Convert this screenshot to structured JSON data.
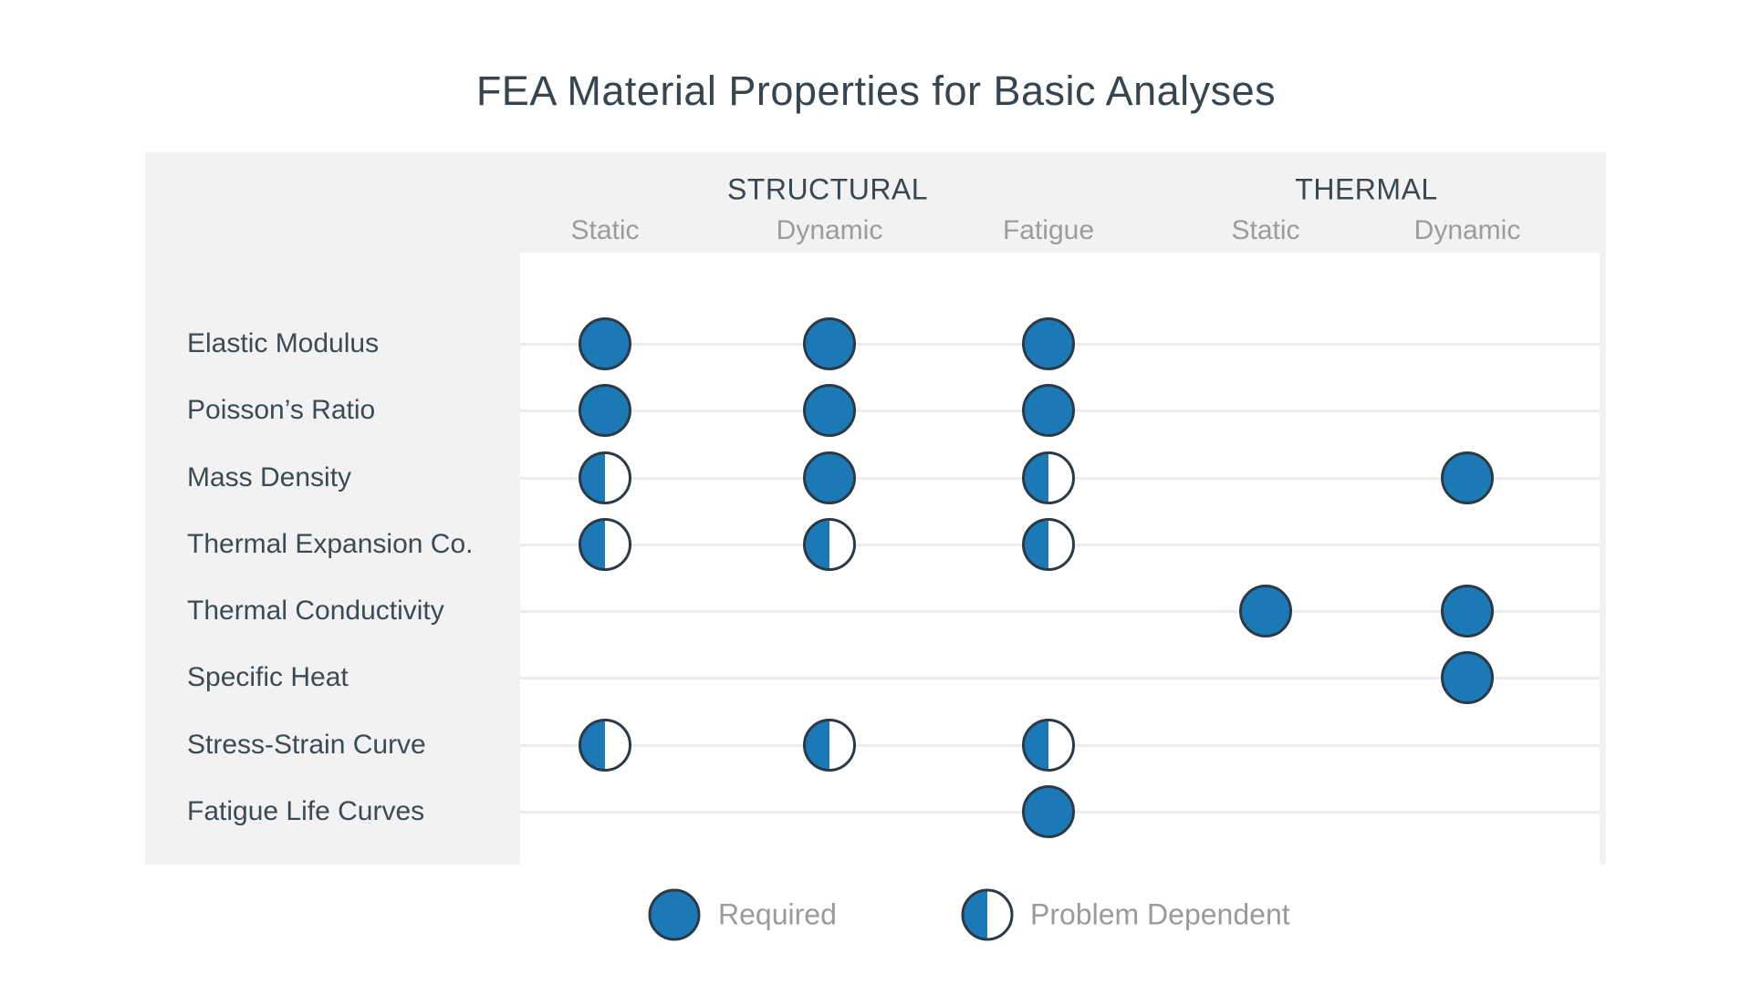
{
  "title": "FEA Material Properties for Basic Analyses",
  "header": {
    "groups": [
      {
        "label": "STRUCTURAL",
        "columns": [
          0,
          1,
          2
        ]
      },
      {
        "label": "THERMAL",
        "columns": [
          3,
          4
        ]
      }
    ],
    "columns": [
      "Static",
      "Dynamic",
      "Fatigue",
      "Static",
      "Dynamic"
    ]
  },
  "legend": [
    {
      "symbol": "full-circle",
      "value": "required",
      "label": "Required"
    },
    {
      "symbol": "half-circle",
      "value": "problem_dependent",
      "label": "Problem Dependent"
    }
  ],
  "colors": {
    "dot_fill": "#1b7ab5",
    "dot_border": "#2c3a47",
    "panel_background": "#f2f2f2",
    "plot_background": "#ffffff",
    "grid_line": "#ededed",
    "heading_text": "#36454f",
    "subheading_text": "#9a9c9e",
    "row_label_text": "#3c4a54",
    "legend_text": "#9a9a9a"
  },
  "chart_data": {
    "type": "table",
    "title": "FEA Material Properties for Basic Analyses",
    "column_groups": [
      {
        "label": "STRUCTURAL",
        "columns": [
          "Static",
          "Dynamic",
          "Fatigue"
        ]
      },
      {
        "label": "THERMAL",
        "columns": [
          "Static",
          "Dynamic"
        ]
      }
    ],
    "columns": [
      "Structural Static",
      "Structural Dynamic",
      "Structural Fatigue",
      "Thermal Static",
      "Thermal Dynamic"
    ],
    "rows": [
      "Elastic Modulus",
      "Poisson’s Ratio",
      "Mass Density",
      "Thermal Expansion Co.",
      "Thermal Conductivity",
      "Specific Heat",
      "Stress-Strain Curve",
      "Fatigue Life Curves"
    ],
    "values": [
      [
        "required",
        "required",
        "required",
        null,
        null
      ],
      [
        "required",
        "required",
        "required",
        null,
        null
      ],
      [
        "problem_dependent",
        "required",
        "problem_dependent",
        null,
        "required"
      ],
      [
        "problem_dependent",
        "problem_dependent",
        "problem_dependent",
        null,
        null
      ],
      [
        null,
        null,
        null,
        "required",
        "required"
      ],
      [
        null,
        null,
        null,
        null,
        "required"
      ],
      [
        "problem_dependent",
        "problem_dependent",
        "problem_dependent",
        null,
        null
      ],
      [
        null,
        null,
        "required",
        null,
        null
      ]
    ],
    "legend": {
      "required": "Required",
      "problem_dependent": "Problem Dependent"
    },
    "grid": "horizontal-lines-on",
    "legend_position": "bottom-center"
  }
}
